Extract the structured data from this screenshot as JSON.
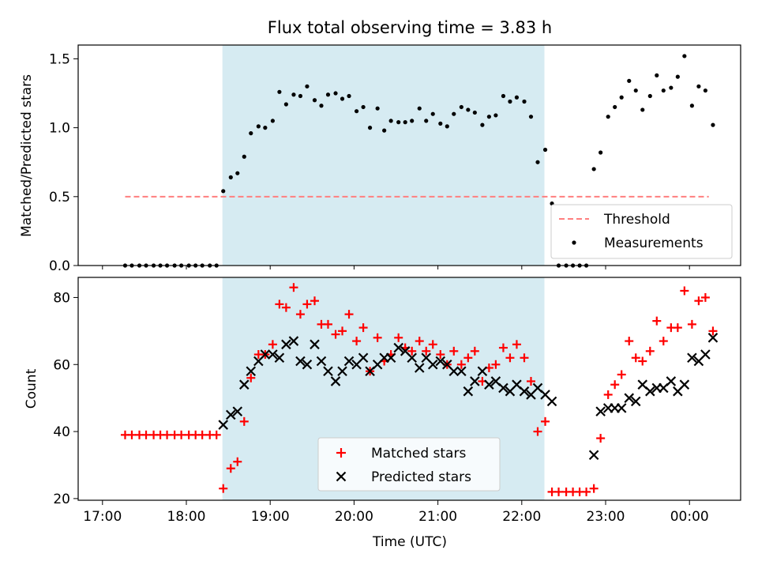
{
  "figure": {
    "title": "Flux total observing time = 3.83 h",
    "xlabel": "Time (UTC)",
    "x_tick_labels": [
      "17:00",
      "18:00",
      "19:00",
      "20:00",
      "21:00",
      "22:00",
      "23:00",
      "00:00"
    ],
    "x_ticks_hours": [
      17,
      18,
      19,
      20,
      21,
      22,
      23,
      24
    ],
    "xlim_hours": [
      16.71,
      24.61
    ],
    "shaded_span_hours": [
      18.43,
      22.27
    ],
    "shade_color": "#add8e6",
    "minor_ticks_on_top_axis": true
  },
  "chart_data": [
    {
      "type": "scatter",
      "ylabel": "Matched/Predicted stars",
      "ylim": [
        0,
        1.6
      ],
      "y_ticks": [
        0.0,
        0.5,
        1.0,
        1.5
      ],
      "y_tick_labels": [
        "0.0",
        "0.5",
        "1.0",
        "1.5"
      ],
      "legend_position": "lower-right",
      "threshold": {
        "name": "Threshold",
        "value": 0.5,
        "x_range": [
          17.27,
          24.23
        ],
        "color": "#ff7f7f",
        "style": "dashed"
      },
      "series": [
        {
          "name": "Measurements",
          "color": "#000000",
          "marker": "dot",
          "x": [
            17.27,
            17.35,
            17.44,
            17.52,
            17.61,
            17.69,
            17.77,
            17.86,
            17.94,
            18.03,
            18.11,
            18.19,
            18.28,
            18.36,
            18.44,
            18.53,
            18.61,
            18.69,
            18.77,
            18.86,
            18.94,
            19.03,
            19.11,
            19.19,
            19.28,
            19.36,
            19.44,
            19.53,
            19.61,
            19.69,
            19.78,
            19.86,
            19.94,
            20.03,
            20.11,
            20.19,
            20.28,
            20.36,
            20.44,
            20.53,
            20.61,
            20.69,
            20.78,
            20.86,
            20.94,
            21.03,
            21.11,
            21.19,
            21.28,
            21.36,
            21.44,
            21.53,
            21.61,
            21.69,
            21.78,
            21.86,
            21.94,
            22.03,
            22.11,
            22.19,
            22.28,
            22.36,
            22.44,
            22.53,
            22.61,
            22.69,
            22.77,
            22.86,
            22.94,
            23.03,
            23.11,
            23.19,
            23.28,
            23.36,
            23.44,
            23.53,
            23.61,
            23.69,
            23.78,
            23.86,
            23.94,
            24.03,
            24.11,
            24.19,
            24.28
          ],
          "y": [
            0,
            0,
            0,
            0,
            0,
            0,
            0,
            0,
            0,
            0,
            0,
            0,
            0,
            0,
            0.54,
            0.64,
            0.67,
            0.79,
            0.96,
            1.01,
            1.0,
            1.05,
            1.26,
            1.17,
            1.24,
            1.23,
            1.3,
            1.2,
            1.16,
            1.24,
            1.25,
            1.21,
            1.23,
            1.12,
            1.15,
            1.0,
            1.14,
            0.98,
            1.05,
            1.04,
            1.04,
            1.05,
            1.14,
            1.05,
            1.1,
            1.03,
            1.01,
            1.1,
            1.15,
            1.13,
            1.11,
            1.02,
            1.08,
            1.09,
            1.23,
            1.19,
            1.22,
            1.19,
            1.08,
            0.75,
            0.84,
            0.45,
            0,
            0,
            0,
            0,
            0,
            0.7,
            0.82,
            1.08,
            1.15,
            1.22,
            1.34,
            1.27,
            1.13,
            1.23,
            1.38,
            1.27,
            1.29,
            1.37,
            1.52,
            1.16,
            1.3,
            1.27,
            1.02
          ]
        }
      ]
    },
    {
      "type": "scatter",
      "ylabel": "Count",
      "ylim": [
        19.5,
        86
      ],
      "y_ticks": [
        20,
        40,
        60,
        80
      ],
      "y_tick_labels": [
        "20",
        "40",
        "60",
        "80"
      ],
      "legend_position": "lower-center",
      "series": [
        {
          "name": "Matched stars",
          "color": "#ff0000",
          "marker": "plus",
          "x": [
            17.27,
            17.35,
            17.44,
            17.52,
            17.61,
            17.69,
            17.77,
            17.86,
            17.94,
            18.03,
            18.11,
            18.19,
            18.28,
            18.36,
            18.44,
            18.53,
            18.61,
            18.69,
            18.77,
            18.86,
            18.94,
            19.03,
            19.11,
            19.19,
            19.28,
            19.36,
            19.44,
            19.53,
            19.61,
            19.69,
            19.78,
            19.86,
            19.94,
            20.03,
            20.11,
            20.19,
            20.28,
            20.36,
            20.44,
            20.53,
            20.61,
            20.69,
            20.78,
            20.86,
            20.94,
            21.03,
            21.11,
            21.19,
            21.28,
            21.36,
            21.44,
            21.53,
            21.61,
            21.69,
            21.78,
            21.86,
            21.94,
            22.03,
            22.11,
            22.19,
            22.28,
            22.36,
            22.44,
            22.53,
            22.61,
            22.69,
            22.77,
            22.86,
            22.94,
            23.03,
            23.11,
            23.19,
            23.28,
            23.36,
            23.44,
            23.53,
            23.61,
            23.69,
            23.78,
            23.86,
            23.94,
            24.03,
            24.11,
            24.19,
            24.28
          ],
          "y": [
            39,
            39,
            39,
            39,
            39,
            39,
            39,
            39,
            39,
            39,
            39,
            39,
            39,
            39,
            23,
            29,
            31,
            43,
            56,
            63,
            63,
            66,
            78,
            77,
            83,
            75,
            78,
            79,
            72,
            72,
            69,
            70,
            75,
            67,
            71,
            58,
            68,
            61,
            63,
            68,
            65,
            64,
            67,
            64,
            66,
            63,
            60,
            64,
            60,
            62,
            64,
            55,
            59,
            60,
            65,
            62,
            66,
            62,
            55,
            40,
            43,
            22,
            22,
            22,
            22,
            22,
            22,
            23,
            38,
            51,
            54,
            57,
            67,
            62,
            61,
            64,
            73,
            67,
            71,
            71,
            82,
            72,
            79,
            80,
            70
          ]
        },
        {
          "name": "Predicted stars",
          "color": "#000000",
          "marker": "x",
          "x": [
            18.44,
            18.53,
            18.61,
            18.69,
            18.77,
            18.86,
            18.94,
            19.03,
            19.11,
            19.19,
            19.28,
            19.36,
            19.44,
            19.53,
            19.61,
            19.69,
            19.78,
            19.86,
            19.94,
            20.03,
            20.11,
            20.19,
            20.28,
            20.36,
            20.44,
            20.53,
            20.61,
            20.69,
            20.78,
            20.86,
            20.94,
            21.03,
            21.11,
            21.19,
            21.28,
            21.36,
            21.44,
            21.53,
            21.61,
            21.69,
            21.78,
            21.86,
            21.94,
            22.03,
            22.11,
            22.19,
            22.28,
            22.36,
            22.86,
            22.94,
            23.03,
            23.11,
            23.19,
            23.28,
            23.36,
            23.44,
            23.53,
            23.61,
            23.69,
            23.78,
            23.86,
            23.94,
            24.03,
            24.11,
            24.19,
            24.28
          ],
          "y": [
            42,
            45,
            46,
            54,
            58,
            61,
            63,
            63,
            62,
            66,
            67,
            61,
            60,
            66,
            61,
            58,
            55,
            58,
            61,
            60,
            62,
            58,
            60,
            62,
            62,
            65,
            64,
            62,
            59,
            62,
            60,
            61,
            60,
            58,
            58,
            52,
            55,
            58,
            54,
            55,
            53,
            52,
            54,
            52,
            51,
            53,
            51,
            49,
            33,
            46,
            47,
            47,
            47,
            50,
            49,
            54,
            52,
            53,
            53,
            55,
            52,
            54,
            62,
            61,
            63,
            68
          ]
        }
      ]
    }
  ]
}
